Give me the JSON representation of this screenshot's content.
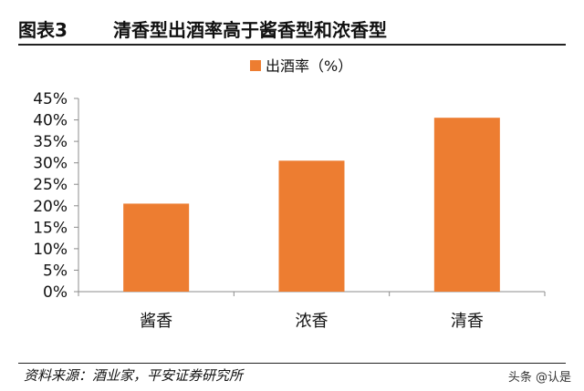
{
  "figure": {
    "number": "图表3",
    "title": "清香型出酒率高于酱香型和浓香型"
  },
  "source": "资料来源：酒业家，平安证券研究所",
  "watermark": "头条 @认是",
  "colors": {
    "bar": "#ED7D31",
    "axis": "#8C8C8C",
    "text": "#111111"
  },
  "chart_data": {
    "type": "bar",
    "categories": [
      "酱香",
      "浓香",
      "清香"
    ],
    "series": [
      {
        "name": "出酒率（%）",
        "values": [
          20.5,
          30.5,
          40.5
        ]
      }
    ],
    "ylim": [
      0,
      45
    ],
    "yticks": [
      "0%",
      "5%",
      "10%",
      "15%",
      "20%",
      "25%",
      "30%",
      "35%",
      "40%",
      "45%"
    ],
    "ytick_values": [
      0,
      5,
      10,
      15,
      20,
      25,
      30,
      35,
      40,
      45
    ],
    "grid": false,
    "legend_position": "top"
  }
}
